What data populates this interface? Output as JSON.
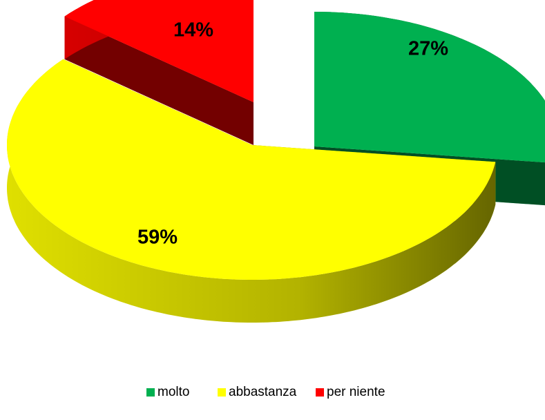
{
  "chart_data": {
    "type": "pie3d",
    "categories": [
      "molto",
      "abbastanza",
      "per niente"
    ],
    "values": [
      27,
      59,
      14
    ],
    "value_labels": [
      "27%",
      "59%",
      "14%"
    ],
    "colors": [
      "#00b050",
      "#ffff00",
      "#ff0000"
    ],
    "legend": "bottom"
  }
}
